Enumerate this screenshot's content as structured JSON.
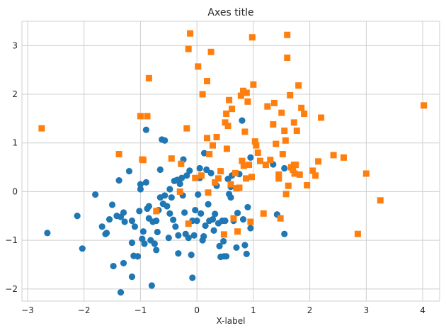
{
  "chart_data": {
    "type": "scatter",
    "title": "Axes title",
    "xlabel": "X-label",
    "ylabel": "",
    "xlim": [
      -3.1,
      4.3
    ],
    "ylim": [
      -2.25,
      3.5
    ],
    "xticks": [
      -3,
      -2,
      -1,
      0,
      1,
      2,
      3,
      4
    ],
    "yticks": [
      -2,
      -1,
      0,
      1,
      2,
      3
    ],
    "grid": true,
    "series": [
      {
        "color": "#1f77b4",
        "marker": "circle",
        "points": [
          [
            -2.65,
            -0.85
          ],
          [
            -2.12,
            -0.5
          ],
          [
            -2.03,
            -1.17
          ],
          [
            -1.8,
            -0.06
          ],
          [
            -1.68,
            -0.72
          ],
          [
            -1.62,
            -0.87
          ],
          [
            -1.55,
            -0.57
          ],
          [
            -1.5,
            -0.27
          ],
          [
            -1.48,
            -1.53
          ],
          [
            -1.42,
            -0.5
          ],
          [
            -1.35,
            -0.52
          ],
          [
            -1.3,
            -0.43
          ],
          [
            -1.28,
            -0.62
          ],
          [
            -1.38,
            0.23
          ],
          [
            -1.3,
            -1.47
          ],
          [
            -1.2,
            0.42
          ],
          [
            -1.15,
            -1.75
          ],
          [
            -1.15,
            -0.6
          ],
          [
            -1.12,
            -1.32
          ],
          [
            -1.1,
            -0.72
          ],
          [
            -1.05,
            -1.33
          ],
          [
            -1.02,
            -0.4
          ],
          [
            -1.0,
            0.05
          ],
          [
            -1.0,
            0.15
          ],
          [
            -0.97,
            -0.97
          ],
          [
            -0.95,
            -0.82
          ],
          [
            -0.93,
            -1.07
          ],
          [
            -0.9,
            1.27
          ],
          [
            -0.9,
            0.19
          ],
          [
            -0.88,
            -0.35
          ],
          [
            -0.85,
            -0.55
          ],
          [
            -0.82,
            -1.0
          ],
          [
            -0.78,
            -0.62
          ],
          [
            -0.75,
            -1.07
          ],
          [
            -0.72,
            -0.6
          ],
          [
            -0.72,
            -1.2
          ],
          [
            -0.7,
            -0.83
          ],
          [
            -0.68,
            -0.38
          ],
          [
            -0.65,
            0.45
          ],
          [
            -0.62,
            1.07
          ],
          [
            -0.6,
            -0.25
          ],
          [
            -0.57,
            -0.08
          ],
          [
            -0.57,
            1.05
          ],
          [
            -0.53,
            -0.3
          ],
          [
            -0.5,
            -0.95
          ],
          [
            -0.48,
            -0.45
          ],
          [
            -0.45,
            -0.12
          ],
          [
            -0.4,
            0.22
          ],
          [
            -0.38,
            -0.72
          ],
          [
            -0.35,
            0.24
          ],
          [
            -0.33,
            -0.9
          ],
          [
            -0.33,
            -1.27
          ],
          [
            -0.3,
            0.16
          ],
          [
            -0.27,
            0.28
          ],
          [
            -0.24,
            0.66
          ],
          [
            -0.22,
            -0.43
          ],
          [
            -0.18,
            0.33
          ],
          [
            -0.15,
            -0.95
          ],
          [
            -0.13,
            0.43
          ],
          [
            -0.1,
            -1.3
          ],
          [
            -0.08,
            -0.6
          ],
          [
            -0.05,
            -0.9
          ],
          [
            -0.03,
            -0.38
          ],
          [
            0.0,
            -0.6
          ],
          [
            0.02,
            -0.06
          ],
          [
            0.05,
            0.28
          ],
          [
            0.07,
            -0.45
          ],
          [
            0.1,
            -1.0
          ],
          [
            0.12,
            -0.92
          ],
          [
            0.13,
            0.79
          ],
          [
            0.17,
            0.45
          ],
          [
            0.2,
            -0.26
          ],
          [
            0.22,
            -0.6
          ],
          [
            0.25,
            0.38
          ],
          [
            0.28,
            -0.57
          ],
          [
            0.3,
            -0.8
          ],
          [
            0.35,
            0.12
          ],
          [
            0.38,
            -0.65
          ],
          [
            0.4,
            -1.12
          ],
          [
            0.42,
            -1.34
          ],
          [
            0.45,
            -0.6
          ],
          [
            0.47,
            -1.02
          ],
          [
            0.5,
            -0.6
          ],
          [
            0.52,
            -1.33
          ],
          [
            0.55,
            0.26
          ],
          [
            0.57,
            -0.05
          ],
          [
            0.6,
            -0.12
          ],
          [
            0.62,
            0.33
          ],
          [
            0.65,
            -0.6
          ],
          [
            0.7,
            -1.15
          ],
          [
            0.72,
            -0.44
          ],
          [
            0.75,
            0.36
          ],
          [
            0.8,
            1.46
          ],
          [
            0.82,
            -0.57
          ],
          [
            0.85,
            -1.1
          ],
          [
            0.88,
            -1.28
          ],
          [
            0.9,
            -0.32
          ],
          [
            0.95,
            -0.75
          ],
          [
            1.35,
            0.56
          ],
          [
            1.42,
            -0.47
          ],
          [
            1.55,
            -0.87
          ],
          [
            -0.8,
            -1.93
          ],
          [
            -1.6,
            -0.85
          ],
          [
            -1.05,
            -1.33
          ],
          [
            -0.85,
            -0.3
          ],
          [
            0.32,
            -0.46
          ],
          [
            0.48,
            -1.33
          ],
          [
            0.15,
            -0.7
          ],
          [
            -0.42,
            -0.58
          ],
          [
            -0.65,
            -0.12
          ],
          [
            -1.15,
            -1.05
          ],
          [
            -0.2,
            -0.87
          ],
          [
            -1.35,
            -2.07
          ],
          [
            -0.08,
            -1.77
          ],
          [
            0.05,
            0.48
          ],
          [
            -0.48,
            0.05
          ],
          [
            -0.25,
            -0.08
          ],
          [
            0.6,
            0.1
          ],
          [
            0.95,
            0.7
          ],
          [
            1.55,
            0.48
          ]
        ]
      },
      {
        "color": "#ff7f0e",
        "marker": "square",
        "points": [
          [
            -2.75,
            1.3
          ],
          [
            -1.38,
            0.77
          ],
          [
            -1.0,
            1.55
          ],
          [
            -0.97,
            0.66
          ],
          [
            -0.95,
            0.65
          ],
          [
            -0.88,
            1.55
          ],
          [
            -0.85,
            2.33
          ],
          [
            -0.72,
            -0.4
          ],
          [
            -0.45,
            0.68
          ],
          [
            -0.3,
            0.0
          ],
          [
            -0.28,
            0.57
          ],
          [
            -0.18,
            1.3
          ],
          [
            -0.15,
            2.93
          ],
          [
            -0.12,
            3.25
          ],
          [
            -0.15,
            -0.66
          ],
          [
            -0.03,
            0.28
          ],
          [
            0.02,
            2.57
          ],
          [
            0.08,
            0.33
          ],
          [
            0.1,
            2.0
          ],
          [
            0.18,
            2.27
          ],
          [
            0.18,
            1.1
          ],
          [
            0.2,
            -0.02
          ],
          [
            0.22,
            0.77
          ],
          [
            0.25,
            2.87
          ],
          [
            0.28,
            0.95
          ],
          [
            0.32,
            0.19
          ],
          [
            0.35,
            1.12
          ],
          [
            0.38,
            0.27
          ],
          [
            0.42,
            0.42
          ],
          [
            0.48,
            -0.88
          ],
          [
            0.5,
            1.42
          ],
          [
            0.52,
            1.6
          ],
          [
            0.53,
            0.88
          ],
          [
            0.55,
            1.35
          ],
          [
            0.57,
            1.88
          ],
          [
            0.6,
            0.15
          ],
          [
            0.62,
            1.7
          ],
          [
            0.65,
            -0.55
          ],
          [
            0.68,
            0.38
          ],
          [
            0.7,
            0.07
          ],
          [
            0.72,
            -0.82
          ],
          [
            0.75,
            0.08
          ],
          [
            0.78,
            1.97
          ],
          [
            0.8,
            0.63
          ],
          [
            0.82,
            2.07
          ],
          [
            0.83,
            0.53
          ],
          [
            0.85,
            1.23
          ],
          [
            0.87,
            0.27
          ],
          [
            0.88,
            2.03
          ],
          [
            0.9,
            1.85
          ],
          [
            0.92,
            0.55
          ],
          [
            0.95,
            -0.62
          ],
          [
            0.97,
            0.3
          ],
          [
            0.98,
            3.17
          ],
          [
            1.0,
            2.2
          ],
          [
            1.03,
            1.03
          ],
          [
            1.05,
            0.95
          ],
          [
            1.08,
            0.8
          ],
          [
            1.12,
            0.63
          ],
          [
            1.18,
            -0.45
          ],
          [
            1.22,
            0.55
          ],
          [
            1.25,
            1.75
          ],
          [
            1.3,
            0.65
          ],
          [
            1.35,
            1.38
          ],
          [
            1.37,
            1.82
          ],
          [
            1.4,
            0.98
          ],
          [
            1.45,
            0.35
          ],
          [
            1.45,
            0.27
          ],
          [
            1.48,
            -0.55
          ],
          [
            1.5,
            1.62
          ],
          [
            1.52,
            0.77
          ],
          [
            1.55,
            1.25
          ],
          [
            1.57,
            1.05
          ],
          [
            1.58,
            -0.05
          ],
          [
            1.6,
            2.75
          ],
          [
            1.62,
            0.12
          ],
          [
            1.65,
            1.98
          ],
          [
            1.67,
            0.5
          ],
          [
            1.7,
            0.45
          ],
          [
            1.72,
            1.42
          ],
          [
            1.73,
            0.37
          ],
          [
            1.75,
            0.55
          ],
          [
            1.77,
            1.25
          ],
          [
            1.8,
            2.18
          ],
          [
            1.82,
            0.35
          ],
          [
            1.85,
            1.72
          ],
          [
            1.9,
            1.6
          ],
          [
            1.95,
            0.13
          ],
          [
            2.05,
            0.43
          ],
          [
            2.1,
            0.33
          ],
          [
            2.15,
            0.62
          ],
          [
            2.2,
            1.52
          ],
          [
            2.42,
            0.75
          ],
          [
            2.6,
            0.7
          ],
          [
            2.85,
            -0.87
          ],
          [
            3.0,
            0.37
          ],
          [
            3.25,
            -0.18
          ],
          [
            4.02,
            1.77
          ],
          [
            1.6,
            3.22
          ],
          [
            1.72,
            0.55
          ]
        ]
      }
    ]
  }
}
